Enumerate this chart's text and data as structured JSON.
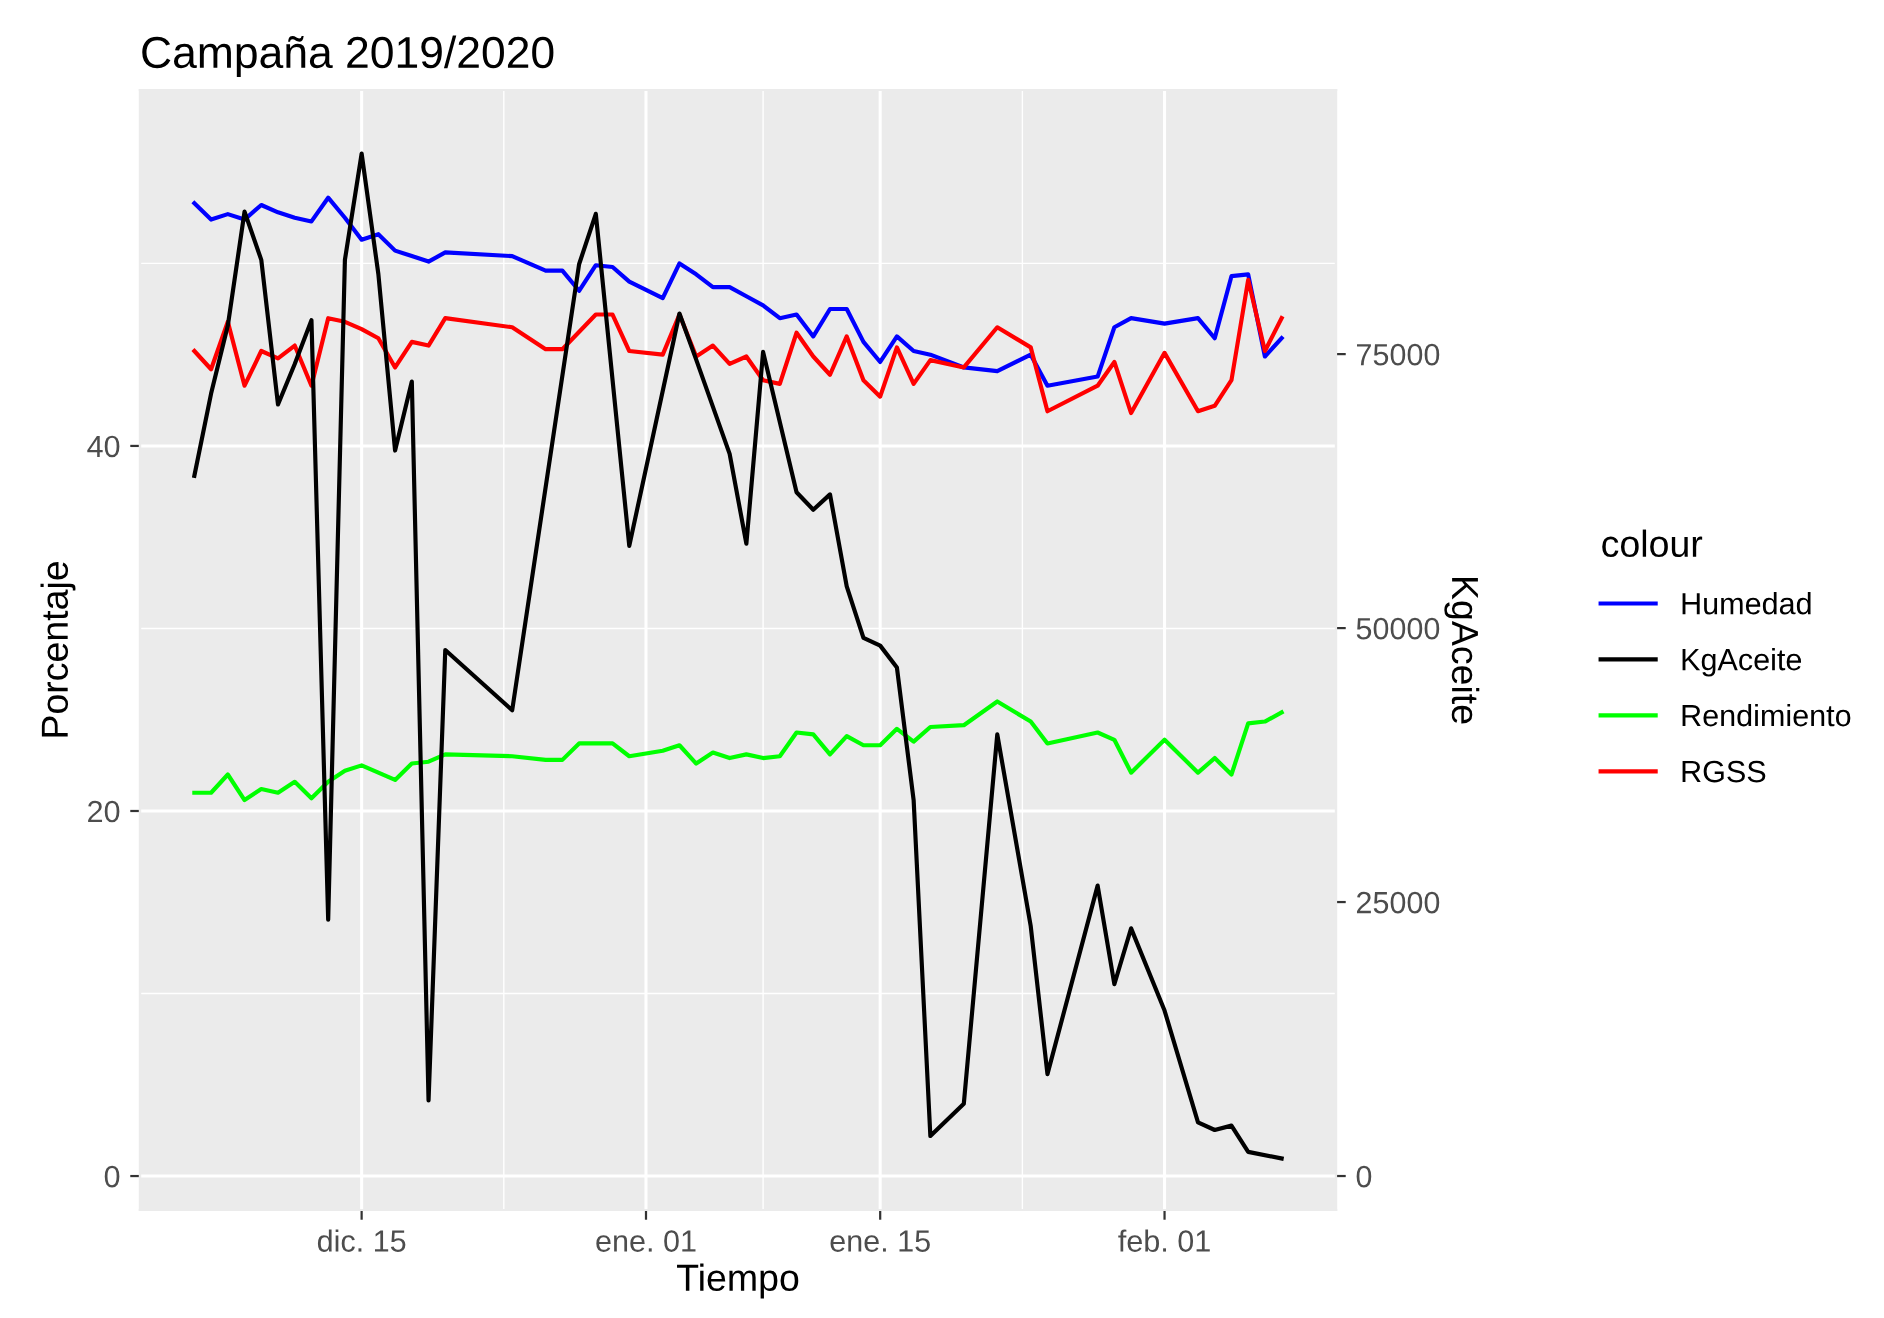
{
  "chart_data": {
    "type": "line",
    "title": "Campaña 2019/2020",
    "xlabel": "Tiempo",
    "ylabel": "Porcentaje",
    "y2label": "KgAceite",
    "legend_title": "colour",
    "legend": "right",
    "grid": true,
    "xlim": [
      "2019-12-01T18:00",
      "2020-02-11T06:00"
    ],
    "xticks": [
      {
        "value": "2019-12-15",
        "label": "dic. 15"
      },
      {
        "value": "2020-01-01",
        "label": "ene. 01"
      },
      {
        "value": "2020-01-15",
        "label": "ene. 15"
      },
      {
        "value": "2020-02-01",
        "label": "feb. 01"
      }
    ],
    "ylim": [
      -1.86,
      59.5
    ],
    "yticks": [
      0,
      20,
      40
    ],
    "y2lim": [
      -3100,
      99100
    ],
    "y2ticks": [
      0,
      25000,
      50000,
      75000
    ],
    "series": [
      {
        "name": "Humedad",
        "color": "#0000ff",
        "x": [
          "2019-12-05",
          "2019-12-06",
          "2019-12-07",
          "2019-12-08",
          "2019-12-09",
          "2019-12-10",
          "2019-12-11",
          "2019-12-12",
          "2019-12-13",
          "2019-12-14",
          "2019-12-15",
          "2019-12-16",
          "2019-12-17",
          "2019-12-18",
          "2019-12-19",
          "2019-12-20",
          "2019-12-24",
          "2019-12-26",
          "2019-12-27",
          "2019-12-28",
          "2019-12-29",
          "2019-12-30",
          "2019-12-31",
          "2020-01-02",
          "2020-01-03",
          "2020-01-04",
          "2020-01-05",
          "2020-01-06",
          "2020-01-07",
          "2020-01-08",
          "2020-01-09",
          "2020-01-10",
          "2020-01-11",
          "2020-01-12",
          "2020-01-13",
          "2020-01-14",
          "2020-01-15",
          "2020-01-16",
          "2020-01-17",
          "2020-01-18",
          "2020-01-20",
          "2020-01-22",
          "2020-01-24",
          "2020-01-25",
          "2020-01-28",
          "2020-01-29",
          "2020-01-30",
          "2020-02-01",
          "2020-02-03",
          "2020-02-04",
          "2020-02-05",
          "2020-02-06",
          "2020-02-07",
          "2020-02-08"
        ],
        "values": [
          53.3,
          52.4,
          52.7,
          52.4,
          53.2,
          52.8,
          52.5,
          52.3,
          53.6,
          52.5,
          51.3,
          51.6,
          50.7,
          50.4,
          50.1,
          50.6,
          50.4,
          49.6,
          49.6,
          48.5,
          49.9,
          49.8,
          49.0,
          48.1,
          50.0,
          49.4,
          48.7,
          48.7,
          48.2,
          47.7,
          47.0,
          47.2,
          46.0,
          47.5,
          47.5,
          45.7,
          44.6,
          46.0,
          45.2,
          45.0,
          44.3,
          44.1,
          45.0,
          43.3,
          43.8,
          46.5,
          47.0,
          46.7,
          47.0,
          45.9,
          49.3,
          49.4,
          44.9,
          45.9
        ]
      },
      {
        "name": "KgAceite",
        "color": "#000000",
        "axis": "y2",
        "x": [
          "2019-12-05",
          "2019-12-06",
          "2019-12-07",
          "2019-12-08",
          "2019-12-09",
          "2019-12-10",
          "2019-12-11",
          "2019-12-12",
          "2019-12-13",
          "2019-12-14",
          "2019-12-15",
          "2019-12-16",
          "2019-12-17",
          "2019-12-18",
          "2019-12-19",
          "2019-12-20",
          "2019-12-24",
          "2019-12-28",
          "2019-12-29",
          "2019-12-31",
          "2020-01-03",
          "2020-01-04",
          "2020-01-06",
          "2020-01-07",
          "2020-01-08",
          "2020-01-10",
          "2020-01-11",
          "2020-01-12",
          "2020-01-13",
          "2020-01-14",
          "2020-01-15",
          "2020-01-16",
          "2020-01-17",
          "2020-01-18",
          "2020-01-20",
          "2020-01-22",
          "2020-01-24",
          "2020-01-25",
          "2020-01-28",
          "2020-01-29",
          "2020-01-30",
          "2020-02-01",
          "2020-02-03",
          "2020-02-04",
          "2020-02-05",
          "2020-02-06",
          "2020-02-08"
        ],
        "values": [
          63900,
          71400,
          77600,
          88000,
          83600,
          70400,
          74100,
          78100,
          23400,
          83600,
          93300,
          82300,
          66200,
          72500,
          6900,
          48000,
          42500,
          83200,
          87800,
          57500,
          78700,
          74500,
          65900,
          57700,
          75200,
          62400,
          60800,
          62200,
          53800,
          49100,
          48400,
          46400,
          34300,
          3650,
          6600,
          40300,
          22800,
          9300,
          26500,
          17500,
          22600,
          15100,
          4900,
          4200,
          4600,
          2200,
          1600
        ]
      },
      {
        "name": "Rendimiento",
        "color": "#00ff00",
        "x": [
          "2019-12-05",
          "2019-12-06",
          "2019-12-07",
          "2019-12-08",
          "2019-12-09",
          "2019-12-10",
          "2019-12-11",
          "2019-12-12",
          "2019-12-13",
          "2019-12-14",
          "2019-12-15",
          "2019-12-16",
          "2019-12-17",
          "2019-12-18",
          "2019-12-19",
          "2019-12-20",
          "2019-12-24",
          "2019-12-26",
          "2019-12-27",
          "2019-12-28",
          "2019-12-29",
          "2019-12-30",
          "2019-12-31",
          "2020-01-02",
          "2020-01-03",
          "2020-01-04",
          "2020-01-05",
          "2020-01-06",
          "2020-01-07",
          "2020-01-08",
          "2020-01-09",
          "2020-01-10",
          "2020-01-11",
          "2020-01-12",
          "2020-01-13",
          "2020-01-14",
          "2020-01-15",
          "2020-01-16",
          "2020-01-17",
          "2020-01-18",
          "2020-01-20",
          "2020-01-22",
          "2020-01-24",
          "2020-01-25",
          "2020-01-28",
          "2020-01-29",
          "2020-01-30",
          "2020-02-01",
          "2020-02-03",
          "2020-02-04",
          "2020-02-05",
          "2020-02-06",
          "2020-02-07",
          "2020-02-08"
        ],
        "values": [
          21.0,
          21.0,
          22.0,
          20.6,
          21.2,
          21.0,
          21.6,
          20.7,
          21.6,
          22.2,
          22.5,
          22.1,
          21.7,
          22.6,
          22.7,
          23.1,
          23.0,
          22.8,
          22.8,
          23.7,
          23.7,
          23.7,
          23.0,
          23.3,
          23.6,
          22.6,
          23.2,
          22.9,
          23.1,
          22.9,
          23.0,
          24.3,
          24.2,
          23.1,
          24.1,
          23.6,
          23.6,
          24.5,
          23.8,
          24.6,
          24.7,
          26.0,
          24.9,
          23.7,
          24.3,
          23.9,
          22.1,
          23.9,
          22.1,
          22.9,
          22.0,
          24.8,
          24.9,
          25.4
        ]
      },
      {
        "name": "RGSS",
        "color": "#ff0000",
        "x": [
          "2019-12-05",
          "2019-12-06",
          "2019-12-07",
          "2019-12-08",
          "2019-12-09",
          "2019-12-10",
          "2019-12-11",
          "2019-12-12",
          "2019-12-13",
          "2019-12-14",
          "2019-12-15",
          "2019-12-16",
          "2019-12-17",
          "2019-12-18",
          "2019-12-19",
          "2019-12-20",
          "2019-12-24",
          "2019-12-26",
          "2019-12-27",
          "2019-12-29",
          "2019-12-30",
          "2019-12-31",
          "2020-01-02",
          "2020-01-03",
          "2020-01-04",
          "2020-01-05",
          "2020-01-06",
          "2020-01-07",
          "2020-01-08",
          "2020-01-09",
          "2020-01-10",
          "2020-01-11",
          "2020-01-12",
          "2020-01-13",
          "2020-01-14",
          "2020-01-15",
          "2020-01-16",
          "2020-01-17",
          "2020-01-18",
          "2020-01-20",
          "2020-01-22",
          "2020-01-24",
          "2020-01-25",
          "2020-01-28",
          "2020-01-29",
          "2020-01-30",
          "2020-02-01",
          "2020-02-03",
          "2020-02-04",
          "2020-02-05",
          "2020-02-06",
          "2020-02-07",
          "2020-02-08"
        ],
        "values": [
          45.2,
          44.2,
          46.8,
          43.3,
          45.2,
          44.8,
          45.5,
          43.3,
          47.0,
          46.8,
          46.4,
          45.9,
          44.3,
          45.7,
          45.5,
          47.0,
          46.5,
          45.3,
          45.3,
          47.2,
          47.2,
          45.2,
          45.0,
          47.2,
          44.9,
          45.5,
          44.5,
          44.9,
          43.6,
          43.4,
          46.2,
          44.9,
          43.9,
          46.0,
          43.6,
          42.7,
          45.4,
          43.4,
          44.7,
          44.3,
          46.5,
          45.4,
          41.9,
          43.3,
          44.6,
          41.8,
          45.1,
          41.9,
          42.2,
          43.6,
          49.1,
          45.2,
          47.0
        ]
      }
    ]
  }
}
